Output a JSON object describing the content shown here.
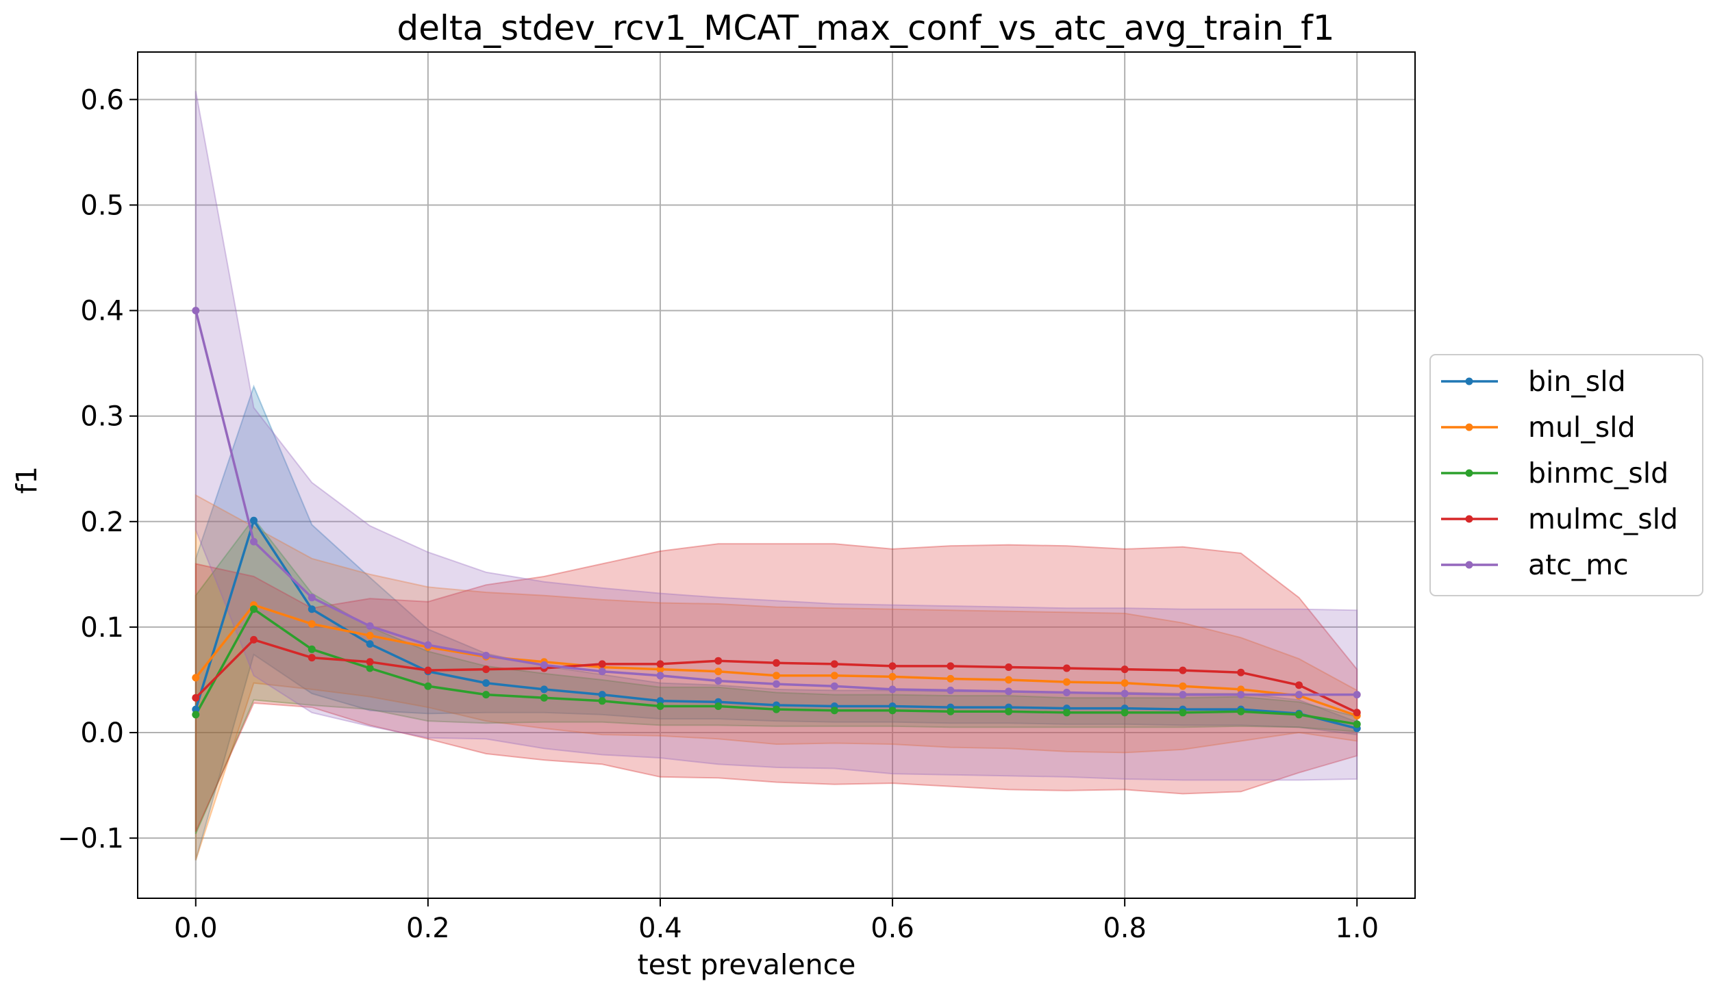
{
  "chart_data": {
    "type": "line",
    "title": "delta_stdev_rcv1_MCAT_max_conf_vs_atc_avg_train_f1",
    "xlabel": "test prevalence",
    "ylabel": "f1",
    "xlim": [
      -0.05,
      1.05
    ],
    "ylim": [
      -0.157,
      0.645
    ],
    "xticks": [
      0.0,
      0.2,
      0.4,
      0.6,
      0.8,
      1.0
    ],
    "xtick_labels": [
      "0.0",
      "0.2",
      "0.4",
      "0.6",
      "0.8",
      "1.0"
    ],
    "yticks": [
      -0.1,
      0.0,
      0.1,
      0.2,
      0.3,
      0.4,
      0.5,
      0.6
    ],
    "ytick_labels": [
      "−0.1",
      "0.0",
      "0.1",
      "0.2",
      "0.3",
      "0.4",
      "0.5",
      "0.6"
    ],
    "grid": true,
    "legend_position": "right-outside",
    "x": [
      0.0,
      0.05,
      0.1,
      0.15,
      0.2,
      0.25,
      0.3,
      0.35,
      0.4,
      0.45,
      0.5,
      0.55,
      0.6,
      0.65,
      0.7,
      0.75,
      0.8,
      0.85,
      0.9,
      0.95,
      1.0
    ],
    "series": [
      {
        "name": "bin_sld",
        "color": "#1f77b4",
        "values": [
          0.022,
          0.201,
          0.117,
          0.084,
          0.058,
          0.047,
          0.041,
          0.036,
          0.03,
          0.029,
          0.026,
          0.025,
          0.025,
          0.024,
          0.024,
          0.023,
          0.023,
          0.022,
          0.022,
          0.018,
          0.004
        ],
        "upper": [
          0.165,
          0.328,
          0.197,
          0.147,
          0.098,
          0.075,
          0.063,
          0.055,
          0.047,
          0.045,
          0.041,
          0.04,
          0.04,
          0.039,
          0.039,
          0.038,
          0.038,
          0.037,
          0.037,
          0.031,
          0.01
        ],
        "lower": [
          -0.121,
          0.074,
          0.037,
          0.021,
          0.018,
          0.019,
          0.019,
          0.017,
          0.013,
          0.013,
          0.011,
          0.01,
          0.01,
          0.009,
          0.009,
          0.008,
          0.008,
          0.007,
          0.007,
          0.005,
          -0.002
        ]
      },
      {
        "name": "mul_sld",
        "color": "#ff7f0e",
        "values": [
          0.052,
          0.121,
          0.103,
          0.092,
          0.081,
          0.072,
          0.067,
          0.062,
          0.06,
          0.058,
          0.054,
          0.054,
          0.053,
          0.051,
          0.05,
          0.048,
          0.047,
          0.044,
          0.041,
          0.035,
          0.016
        ],
        "upper": [
          0.225,
          0.195,
          0.165,
          0.15,
          0.138,
          0.133,
          0.13,
          0.126,
          0.123,
          0.122,
          0.119,
          0.118,
          0.117,
          0.116,
          0.115,
          0.114,
          0.113,
          0.104,
          0.09,
          0.07,
          0.04
        ],
        "lower": [
          -0.121,
          0.047,
          0.041,
          0.034,
          0.024,
          0.011,
          0.004,
          -0.002,
          -0.003,
          -0.006,
          -0.011,
          -0.01,
          -0.011,
          -0.014,
          -0.015,
          -0.018,
          -0.019,
          -0.016,
          -0.008,
          0.0,
          -0.008
        ]
      },
      {
        "name": "binmc_sld",
        "color": "#2ca02c",
        "values": [
          0.017,
          0.117,
          0.079,
          0.061,
          0.044,
          0.036,
          0.033,
          0.03,
          0.025,
          0.025,
          0.022,
          0.021,
          0.021,
          0.02,
          0.02,
          0.019,
          0.019,
          0.019,
          0.02,
          0.017,
          0.008
        ],
        "upper": [
          0.13,
          0.203,
          0.132,
          0.1,
          0.077,
          0.063,
          0.056,
          0.05,
          0.043,
          0.043,
          0.038,
          0.036,
          0.036,
          0.035,
          0.035,
          0.033,
          0.033,
          0.033,
          0.034,
          0.029,
          0.015
        ],
        "lower": [
          -0.096,
          0.031,
          0.026,
          0.022,
          0.011,
          0.009,
          0.01,
          0.01,
          0.007,
          0.007,
          0.006,
          0.006,
          0.006,
          0.005,
          0.005,
          0.005,
          0.005,
          0.005,
          0.006,
          0.005,
          0.001
        ]
      },
      {
        "name": "mulmc_sld",
        "color": "#d62728",
        "values": [
          0.033,
          0.088,
          0.071,
          0.067,
          0.059,
          0.06,
          0.061,
          0.065,
          0.065,
          0.068,
          0.066,
          0.065,
          0.063,
          0.063,
          0.062,
          0.061,
          0.06,
          0.059,
          0.057,
          0.045,
          0.019
        ],
        "upper": [
          0.16,
          0.148,
          0.118,
          0.127,
          0.124,
          0.14,
          0.148,
          0.16,
          0.172,
          0.179,
          0.179,
          0.179,
          0.174,
          0.177,
          0.178,
          0.177,
          0.174,
          0.176,
          0.17,
          0.128,
          0.06
        ],
        "lower": [
          -0.094,
          0.028,
          0.024,
          0.007,
          -0.006,
          -0.02,
          -0.026,
          -0.03,
          -0.042,
          -0.043,
          -0.047,
          -0.049,
          -0.048,
          -0.051,
          -0.054,
          -0.055,
          -0.054,
          -0.058,
          -0.056,
          -0.038,
          -0.022
        ]
      },
      {
        "name": "atc_mc",
        "color": "#9467bd",
        "values": [
          0.4,
          0.181,
          0.128,
          0.101,
          0.083,
          0.073,
          0.064,
          0.058,
          0.054,
          0.049,
          0.046,
          0.044,
          0.041,
          0.04,
          0.039,
          0.038,
          0.037,
          0.036,
          0.036,
          0.036,
          0.036
        ],
        "upper": [
          0.608,
          0.308,
          0.237,
          0.196,
          0.171,
          0.152,
          0.143,
          0.137,
          0.132,
          0.128,
          0.125,
          0.122,
          0.121,
          0.12,
          0.119,
          0.118,
          0.118,
          0.117,
          0.117,
          0.117,
          0.116
        ],
        "lower": [
          0.192,
          0.054,
          0.019,
          0.006,
          -0.005,
          -0.006,
          -0.015,
          -0.021,
          -0.024,
          -0.03,
          -0.033,
          -0.034,
          -0.039,
          -0.04,
          -0.041,
          -0.042,
          -0.044,
          -0.045,
          -0.045,
          -0.045,
          -0.044
        ]
      }
    ]
  }
}
